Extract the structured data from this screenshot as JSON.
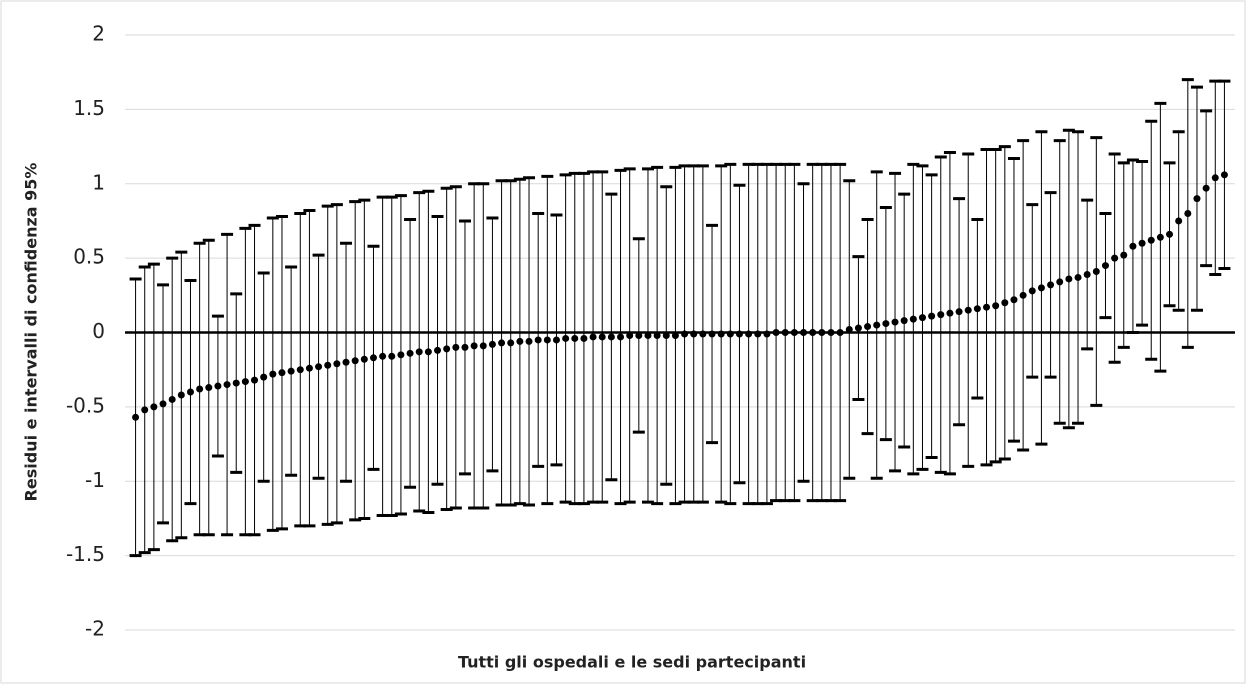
{
  "chart_data": {
    "type": "errorbar",
    "ylabel": "Residui e intervalli di confidenza 95%",
    "xlabel": "Tutti gli ospedali e le sedi partecipanti",
    "color": "#000000",
    "grid": true,
    "ylim": [
      -2,
      2
    ],
    "yticks": [
      -2,
      -1.5,
      -1,
      -0.5,
      0,
      0.5,
      1,
      1.5,
      2
    ],
    "values": [
      -0.57,
      -0.52,
      -0.5,
      -0.48,
      -0.45,
      -0.42,
      -0.4,
      -0.38,
      -0.37,
      -0.36,
      -0.35,
      -0.34,
      -0.33,
      -0.32,
      -0.3,
      -0.28,
      -0.27,
      -0.26,
      -0.25,
      -0.24,
      -0.23,
      -0.22,
      -0.21,
      -0.2,
      -0.19,
      -0.18,
      -0.17,
      -0.16,
      -0.16,
      -0.15,
      -0.14,
      -0.13,
      -0.13,
      -0.12,
      -0.11,
      -0.1,
      -0.1,
      -0.09,
      -0.09,
      -0.08,
      -0.07,
      -0.07,
      -0.06,
      -0.06,
      -0.05,
      -0.05,
      -0.05,
      -0.04,
      -0.04,
      -0.04,
      -0.03,
      -0.03,
      -0.03,
      -0.03,
      -0.02,
      -0.02,
      -0.02,
      -0.02,
      -0.02,
      -0.02,
      -0.01,
      -0.01,
      -0.01,
      -0.01,
      -0.01,
      -0.01,
      -0.01,
      -0.01,
      -0.01,
      -0.01,
      0.0,
      0.0,
      0.0,
      0.0,
      0.0,
      0.0,
      0.0,
      0.0,
      0.02,
      0.03,
      0.04,
      0.05,
      0.06,
      0.07,
      0.08,
      0.09,
      0.1,
      0.11,
      0.12,
      0.13,
      0.14,
      0.15,
      0.16,
      0.17,
      0.18,
      0.2,
      0.22,
      0.25,
      0.28,
      0.3,
      0.32,
      0.34,
      0.36,
      0.37,
      0.39,
      0.41,
      0.45,
      0.5,
      0.52,
      0.58,
      0.6,
      0.62,
      0.64,
      0.66,
      0.75,
      0.8,
      0.9,
      0.97,
      1.04,
      1.06
    ],
    "errors": [
      0.93,
      0.96,
      0.96,
      0.8,
      0.95,
      0.96,
      0.75,
      0.98,
      0.99,
      0.47,
      1.01,
      0.6,
      1.03,
      1.04,
      0.7,
      1.05,
      1.05,
      0.7,
      1.05,
      1.06,
      0.75,
      1.07,
      1.07,
      0.8,
      1.07,
      1.07,
      0.75,
      1.07,
      1.07,
      1.07,
      0.9,
      1.07,
      1.08,
      0.9,
      1.08,
      1.08,
      0.85,
      1.09,
      1.09,
      0.85,
      1.09,
      1.09,
      1.09,
      1.1,
      0.85,
      1.1,
      0.84,
      1.1,
      1.11,
      1.11,
      1.11,
      1.11,
      0.96,
      1.12,
      1.12,
      0.65,
      1.12,
      1.13,
      1.0,
      1.13,
      1.13,
      1.13,
      1.13,
      0.73,
      1.13,
      1.14,
      1.0,
      1.14,
      1.14,
      1.14,
      1.13,
      1.13,
      1.13,
      1.0,
      1.13,
      1.13,
      1.13,
      1.13,
      1.0,
      0.48,
      0.72,
      1.03,
      0.78,
      1.0,
      0.85,
      1.04,
      1.02,
      0.95,
      1.06,
      1.08,
      0.76,
      1.05,
      0.6,
      1.06,
      1.05,
      1.05,
      0.95,
      1.04,
      0.58,
      1.05,
      0.62,
      0.95,
      1.0,
      0.98,
      0.5,
      0.9,
      0.35,
      0.7,
      0.62,
      0.58,
      0.55,
      0.8,
      0.9,
      0.48,
      0.6,
      0.9,
      0.75,
      0.52,
      0.65,
      0.63
    ]
  }
}
